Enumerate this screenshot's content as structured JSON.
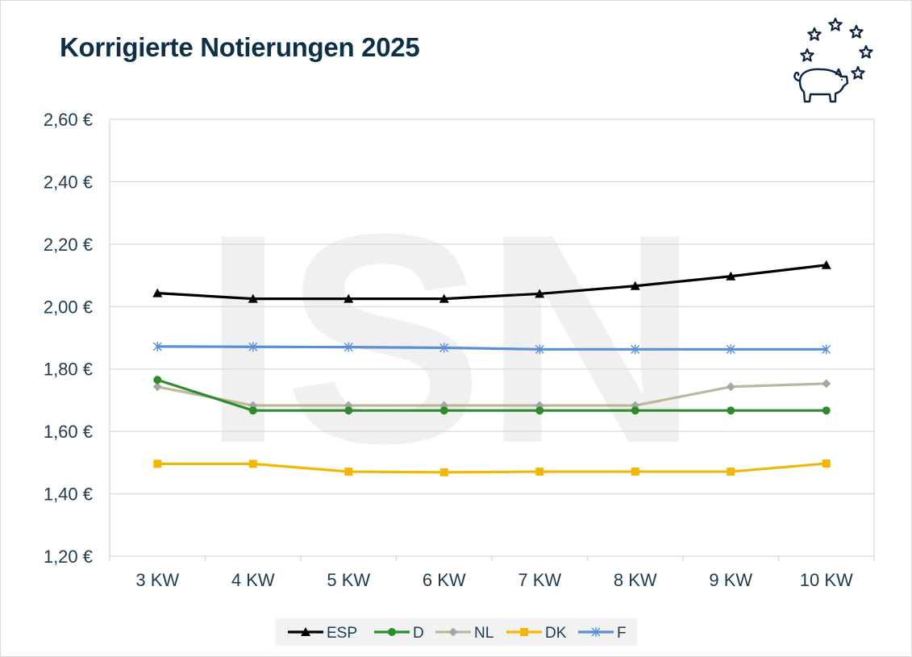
{
  "title": "Korrigierte Notierungen 2025",
  "colors": {
    "ESP": "#000000",
    "D": "#2e8b2e",
    "NL": "#bdb89c",
    "DK": "#f2b705",
    "F": "#5b8fd6",
    "grid": "#d9d9d9",
    "title": "#0d3047",
    "logo": "#0d2440"
  },
  "icons": [
    "pig-icon",
    "star-icon"
  ],
  "watermark": "ISN",
  "chart_data": {
    "type": "line",
    "title": "Korrigierte Notierungen 2025",
    "categories": [
      "3 KW",
      "4 KW",
      "5 KW",
      "6 KW",
      "7 KW",
      "8 KW",
      "9 KW",
      "10 KW"
    ],
    "ylim": [
      1.2,
      2.6
    ],
    "yticks": [
      1.2,
      1.4,
      1.6,
      1.8,
      2.0,
      2.2,
      2.4,
      2.6
    ],
    "ytick_labels": [
      "1,20 €",
      "1,40 €",
      "1,60 €",
      "1,80 €",
      "2,00 €",
      "2,20 €",
      "2,40 €",
      "2,60 €"
    ],
    "grid": true,
    "legend_position": "bottom",
    "series": [
      {
        "name": "ESP",
        "marker": "triangle",
        "values": [
          2.043,
          2.025,
          2.025,
          2.025,
          2.041,
          2.066,
          2.097,
          2.133
        ]
      },
      {
        "name": "D",
        "marker": "circle",
        "values": [
          1.765,
          1.667,
          1.667,
          1.667,
          1.667,
          1.667,
          1.667,
          1.667
        ]
      },
      {
        "name": "NL",
        "marker": "diamond",
        "values": [
          1.743,
          1.683,
          1.683,
          1.683,
          1.683,
          1.683,
          1.743,
          1.753
        ]
      },
      {
        "name": "DK",
        "marker": "square",
        "values": [
          1.496,
          1.496,
          1.471,
          1.469,
          1.471,
          1.471,
          1.471,
          1.497
        ]
      },
      {
        "name": "F",
        "marker": "asterisk",
        "values": [
          1.872,
          1.871,
          1.87,
          1.868,
          1.863,
          1.863,
          1.863,
          1.863
        ]
      }
    ]
  }
}
